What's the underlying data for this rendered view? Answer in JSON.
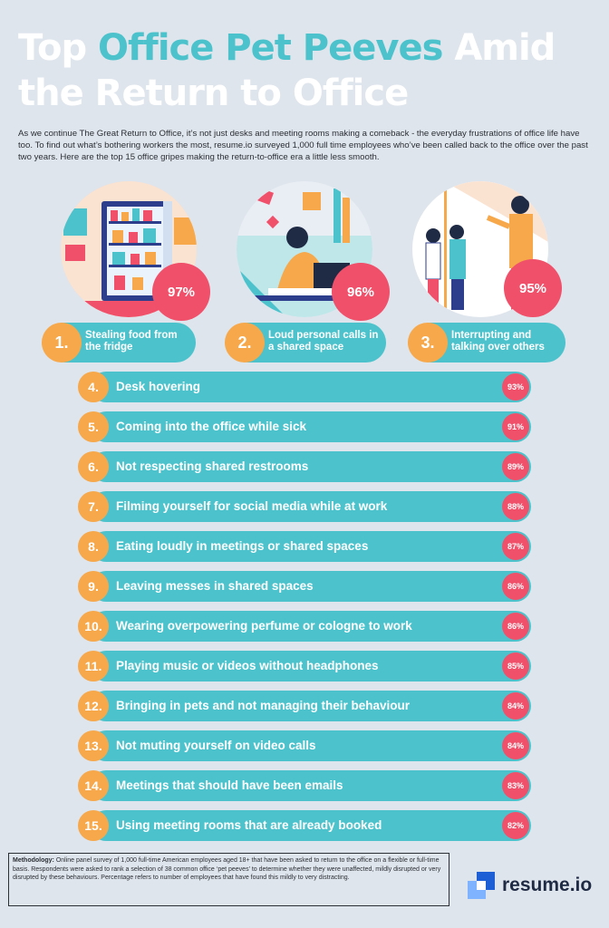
{
  "title": {
    "part1": "Top ",
    "accent": "Office Pet Peeves",
    "part2": " Amid the Return to Office"
  },
  "intro": "As we continue The Great Return to Office, it’s not just desks and meeting rooms making a comeback - the everyday frustrations of office life have too. To find out what’s bothering workers the most, resume.io surveyed 1,000 full time employees who’ve been called back to the office over the past two years. Here are the top 15 office gripes making the return-to-office era a little less smooth.",
  "top3": [
    {
      "rank": "1.",
      "label": "Stealing food from the fridge",
      "percent": "97%",
      "illustration": "fridge-illustration"
    },
    {
      "rank": "2.",
      "label": "Loud personal calls in a shared space",
      "percent": "96%",
      "illustration": "phone-call-illustration"
    },
    {
      "rank": "3.",
      "label": "Interrupting and talking over others",
      "percent": "95%",
      "illustration": "meeting-illustration"
    }
  ],
  "rows": [
    {
      "rank": "4.",
      "label": "Desk hovering",
      "percent": "93%"
    },
    {
      "rank": "5.",
      "label": "Coming into the office while sick",
      "percent": "91%"
    },
    {
      "rank": "6.",
      "label": "Not respecting shared restrooms",
      "percent": "89%"
    },
    {
      "rank": "7.",
      "label": "Filming yourself for social media while at work",
      "percent": "88%"
    },
    {
      "rank": "8.",
      "label": "Eating loudly in meetings or shared spaces",
      "percent": "87%"
    },
    {
      "rank": "9.",
      "label": "Leaving messes in shared spaces",
      "percent": "86%"
    },
    {
      "rank": "10.",
      "label": "Wearing overpowering perfume or cologne to work",
      "percent": "86%"
    },
    {
      "rank": "11.",
      "label": "Playing music or videos without headphones",
      "percent": "85%"
    },
    {
      "rank": "12.",
      "label": "Bringing in pets and not managing their behaviour",
      "percent": "84%"
    },
    {
      "rank": "13.",
      "label": "Not muting yourself on video calls",
      "percent": "84%"
    },
    {
      "rank": "14.",
      "label": "Meetings that should have been emails",
      "percent": "83%"
    },
    {
      "rank": "15.",
      "label": "Using meeting rooms that are already booked",
      "percent": "82%"
    }
  ],
  "methodology": {
    "heading": "Methodology:",
    "text": " Online panel survey of 1,000 full-time American employees aged 18+ that have been asked to return to the office on a flexible or full-time basis. Respondents were asked to rank a selection of 38 common office ‘pet peeves’ to determine whether they were unaffected, mildly disrupted or very disrupted by these behaviours. Percentage refers to number of employees that have found this mildly to very distracting."
  },
  "logo": {
    "text": "resume.io",
    "icon": "resume-io-logo-icon"
  },
  "colors": {
    "background": "#dfe5ec",
    "teal": "#4cc3cc",
    "orange": "#f6a84b",
    "pink": "#f0506a",
    "navy": "#1f2a44"
  }
}
